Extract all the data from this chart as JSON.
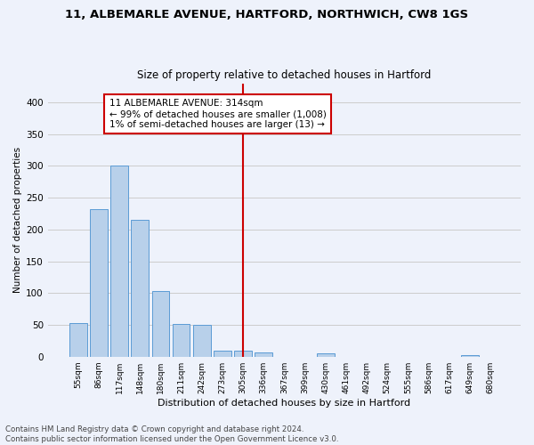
{
  "title": "11, ALBEMARLE AVENUE, HARTFORD, NORTHWICH, CW8 1GS",
  "subtitle": "Size of property relative to detached houses in Hartford",
  "xlabel": "Distribution of detached houses by size in Hartford",
  "ylabel": "Number of detached properties",
  "footnote1": "Contains HM Land Registry data © Crown copyright and database right 2024.",
  "footnote2": "Contains public sector information licensed under the Open Government Licence v3.0.",
  "bar_labels": [
    "55sqm",
    "86sqm",
    "117sqm",
    "148sqm",
    "180sqm",
    "211sqm",
    "242sqm",
    "273sqm",
    "305sqm",
    "336sqm",
    "367sqm",
    "399sqm",
    "430sqm",
    "461sqm",
    "492sqm",
    "524sqm",
    "555sqm",
    "586sqm",
    "617sqm",
    "649sqm",
    "680sqm"
  ],
  "bar_values": [
    53,
    232,
    300,
    215,
    103,
    52,
    50,
    10,
    10,
    6,
    0,
    0,
    5,
    0,
    0,
    0,
    0,
    0,
    0,
    3,
    0
  ],
  "bar_color": "#b8d0ea",
  "bar_edge_color": "#5b9bd5",
  "property_line_label": "11 ALBEMARLE AVENUE: 314sqm",
  "annotation_line2": "← 99% of detached houses are smaller (1,008)",
  "annotation_line3": "1% of semi-detached houses are larger (13) →",
  "annotation_box_color": "#cc0000",
  "annotation_text_color": "#000000",
  "annotation_bg": "#ffffff",
  "vline_color": "#cc0000",
  "grid_color": "#cccccc",
  "background_color": "#eef2fb",
  "ylim": [
    0,
    430
  ],
  "yticks": [
    0,
    50,
    100,
    150,
    200,
    250,
    300,
    350,
    400
  ]
}
